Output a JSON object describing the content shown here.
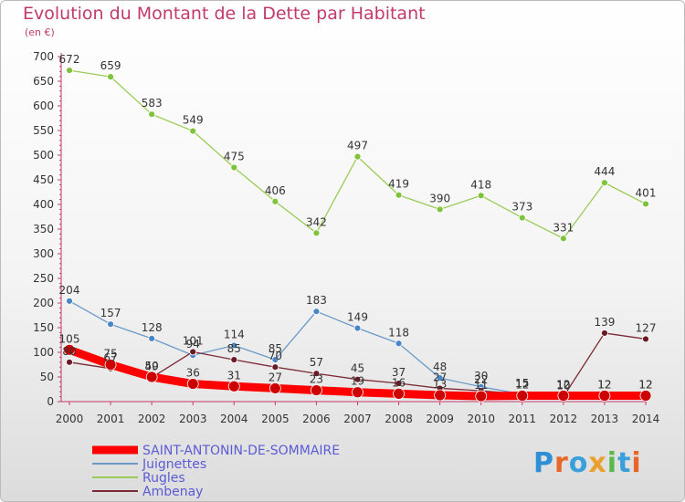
{
  "header": {
    "title": "Evolution du Montant de la Dette par Habitant",
    "subtitle": "(en €)"
  },
  "logo": {
    "text": "Proxiti"
  },
  "colors": {
    "title": "#c23a6a",
    "SAINT-ANTONIN-DE-SOMMAIRE": "#ff0000",
    "Juignettes": "#6a9ac8",
    "Rugles": "#99cc55",
    "Ambenay": "#7b2a35"
  },
  "chart_data": {
    "type": "line",
    "title": "Evolution du Montant de la Dette par Habitant",
    "subtitle": "(en €)",
    "xlabel": "",
    "ylabel": "",
    "x": [
      "2000",
      "2001",
      "2002",
      "2003",
      "2004",
      "2005",
      "2006",
      "2007",
      "2008",
      "2009",
      "2010",
      "2011",
      "2012",
      "2013",
      "2014"
    ],
    "ylim": [
      0,
      700
    ],
    "yticks": [
      0,
      50,
      100,
      150,
      200,
      250,
      300,
      350,
      400,
      450,
      500,
      550,
      600,
      650,
      700
    ],
    "grid": false,
    "legend": "bottom-left",
    "series": [
      {
        "name": "SAINT-ANTONIN-DE-SOMMAIRE",
        "values": [
          105,
          75,
          50,
          36,
          31,
          27,
          23,
          19,
          16,
          13,
          11,
          12,
          12,
          12,
          12
        ]
      },
      {
        "name": "Juignettes",
        "values": [
          204,
          157,
          128,
          94,
          114,
          85,
          183,
          149,
          118,
          48,
          30,
          15,
          12,
          12,
          12
        ]
      },
      {
        "name": "Rugles",
        "values": [
          672,
          659,
          583,
          549,
          475,
          406,
          342,
          497,
          419,
          390,
          418,
          373,
          331,
          444,
          401
        ]
      },
      {
        "name": "Ambenay",
        "values": [
          80,
          67,
          49,
          101,
          85,
          70,
          57,
          45,
          37,
          27,
          22,
          15,
          10,
          139,
          127
        ]
      }
    ]
  }
}
